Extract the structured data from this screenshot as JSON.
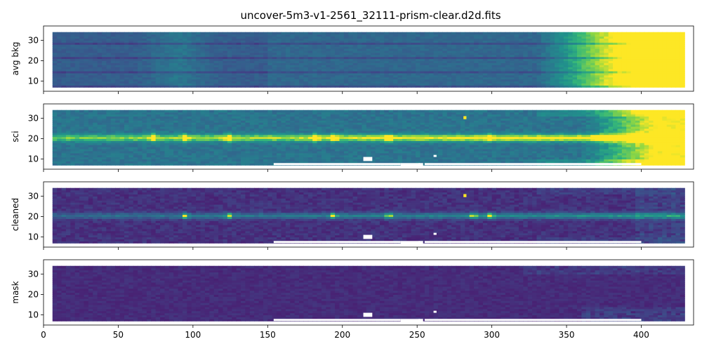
{
  "chart_data": {
    "type": "heatmap",
    "title": "uncover-5m3-v1-2561_32111-prism-clear.d2d.fits",
    "colormap": "viridis",
    "shared_x": true,
    "xlim": [
      0,
      435
    ],
    "x_ticks": [
      0,
      50,
      100,
      150,
      200,
      250,
      300,
      350,
      400
    ],
    "ylim": [
      5,
      37
    ],
    "y_ticks": [
      10,
      20,
      30
    ],
    "data_extent": {
      "x": [
        6,
        428
      ],
      "y": [
        7,
        34
      ]
    },
    "trace_row": 20.5,
    "panels": [
      {
        "ylabel": "avg bkg",
        "base_level": 0.3,
        "red_end_gradient": {
          "start": 330,
          "end": 395,
          "max": 1.0
        },
        "blue_bump": {
          "center": 90,
          "width": 18,
          "amount": 0.12
        },
        "blank_rows": [
          7,
          14,
          21,
          28
        ],
        "features": []
      },
      {
        "ylabel": "sci",
        "base_level": 0.35,
        "continuum_trace": true,
        "emission_lines": [
          73,
          95,
          124,
          182,
          194,
          231,
          299
        ],
        "hot_pixel": {
          "x": 282,
          "y": 30,
          "value": 1.0
        },
        "masked_regions": [
          {
            "x": [
              154,
              239
            ],
            "y": [
              7,
              8
            ]
          },
          {
            "x": [
              239,
              252
            ],
            "y": [
              5,
              8
            ]
          },
          {
            "x": [
              255,
              400
            ],
            "y": [
              7,
              8
            ]
          },
          {
            "x": [
              214,
              220
            ],
            "y": [
              9,
              11
            ]
          },
          {
            "x": [
              251,
              254
            ],
            "y": [
              5,
              8
            ]
          },
          {
            "x": [
              261,
              263
            ],
            "y": [
              11,
              12
            ]
          }
        ],
        "red_end_gradient": {
          "start": 360,
          "end": 410,
          "max": 1.0
        }
      },
      {
        "ylabel": "cleaned",
        "base_level": 0.12,
        "continuum_trace": true,
        "emission_lines": [
          95,
          124,
          194,
          231,
          288,
          299
        ],
        "hot_pixel": {
          "x": 282,
          "y": 30,
          "value": 1.0
        },
        "masked_regions": [
          {
            "x": [
              154,
              239
            ],
            "y": [
              7,
              8
            ]
          },
          {
            "x": [
              239,
              252
            ],
            "y": [
              5,
              8
            ]
          },
          {
            "x": [
              255,
              400
            ],
            "y": [
              7,
              8
            ]
          },
          {
            "x": [
              214,
              220
            ],
            "y": [
              9,
              11
            ]
          },
          {
            "x": [
              251,
              254
            ],
            "y": [
              5,
              8
            ]
          },
          {
            "x": [
              261,
              263
            ],
            "y": [
              11,
              12
            ]
          }
        ]
      },
      {
        "ylabel": "mask",
        "base_level": 0.12,
        "continuum_trace": false,
        "masked_regions": [
          {
            "x": [
              154,
              239
            ],
            "y": [
              7,
              8
            ]
          },
          {
            "x": [
              239,
              252
            ],
            "y": [
              5,
              8
            ]
          },
          {
            "x": [
              255,
              400
            ],
            "y": [
              7,
              8
            ]
          },
          {
            "x": [
              214,
              220
            ],
            "y": [
              9,
              11
            ]
          },
          {
            "x": [
              251,
              254
            ],
            "y": [
              5,
              8
            ]
          },
          {
            "x": [
              261,
              263
            ],
            "y": [
              11,
              12
            ]
          }
        ]
      }
    ]
  }
}
